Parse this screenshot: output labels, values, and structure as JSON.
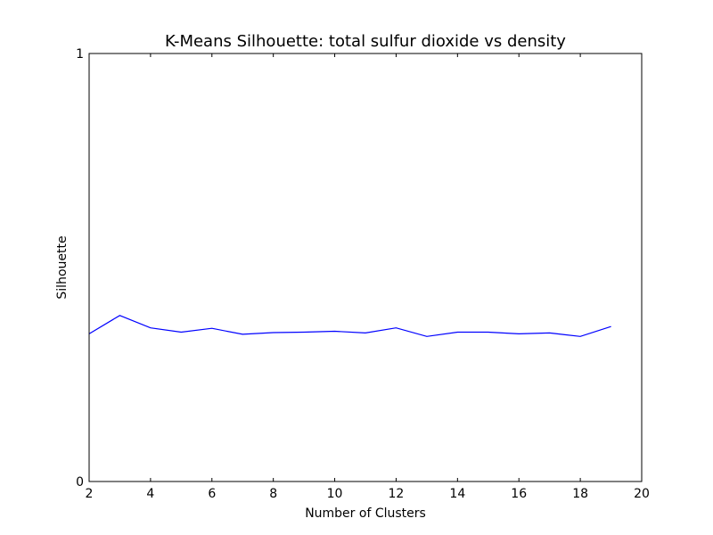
{
  "chart_data": {
    "type": "line",
    "title": "K-Means Silhouette: total sulfur dioxide vs density",
    "xlabel": "Number of Clusters",
    "ylabel": "Silhouette",
    "xlim": [
      2,
      20
    ],
    "ylim": [
      0,
      1
    ],
    "xticks": [
      2,
      4,
      6,
      8,
      10,
      12,
      14,
      16,
      18,
      20
    ],
    "yticks": [
      0,
      1
    ],
    "grid": false,
    "line_color": "#0000ff",
    "series": [
      {
        "x": [
          2,
          3,
          4,
          5,
          6,
          7,
          8,
          9,
          10,
          11,
          12,
          13,
          14,
          15,
          16,
          17,
          18,
          19
        ],
        "values": [
          0.345,
          0.388,
          0.359,
          0.349,
          0.358,
          0.344,
          0.348,
          0.349,
          0.351,
          0.347,
          0.359,
          0.339,
          0.349,
          0.349,
          0.345,
          0.347,
          0.339,
          0.362
        ]
      }
    ]
  }
}
